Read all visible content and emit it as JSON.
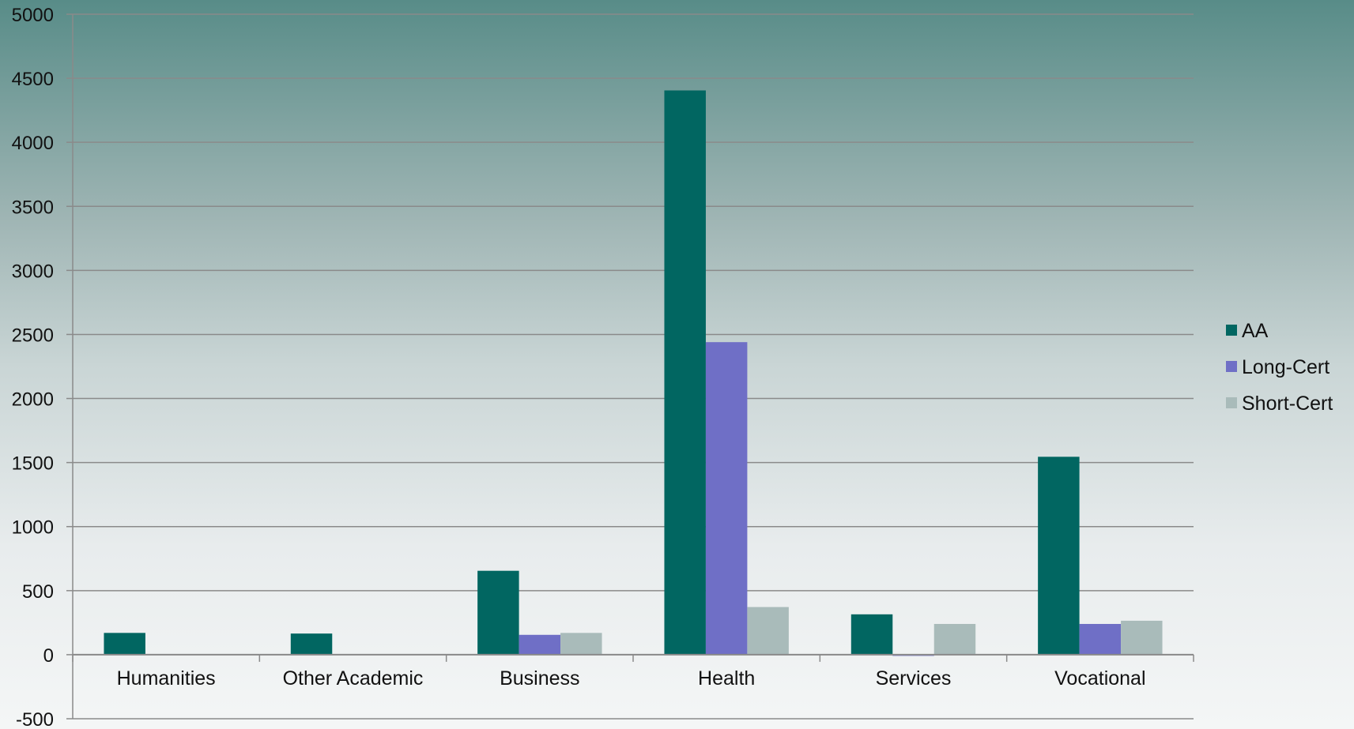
{
  "chart_data": {
    "type": "bar",
    "title": "",
    "xlabel": "",
    "ylabel": "",
    "categories": [
      "Humanities",
      "Other Academic",
      "Business",
      "Health",
      "Services",
      "Vocational"
    ],
    "series": [
      {
        "name": "AA",
        "color": "#016661",
        "values": [
          170,
          165,
          655,
          4405,
          315,
          1545
        ]
      },
      {
        "name": "Long-Cert",
        "color": "#6f6fc6",
        "values": [
          0,
          0,
          155,
          2440,
          -5,
          240
        ]
      },
      {
        "name": "Short-Cert",
        "color": "#a9bbba",
        "values": [
          0,
          0,
          170,
          372,
          240,
          265
        ]
      }
    ],
    "ylim": [
      -500,
      5000
    ],
    "yticks": [
      "-500",
      "0",
      "500",
      "1000",
      "1500",
      "2000",
      "2500",
      "3000",
      "3500",
      "4000",
      "4500",
      "5000"
    ],
    "grid": true,
    "legend_position": "right"
  }
}
